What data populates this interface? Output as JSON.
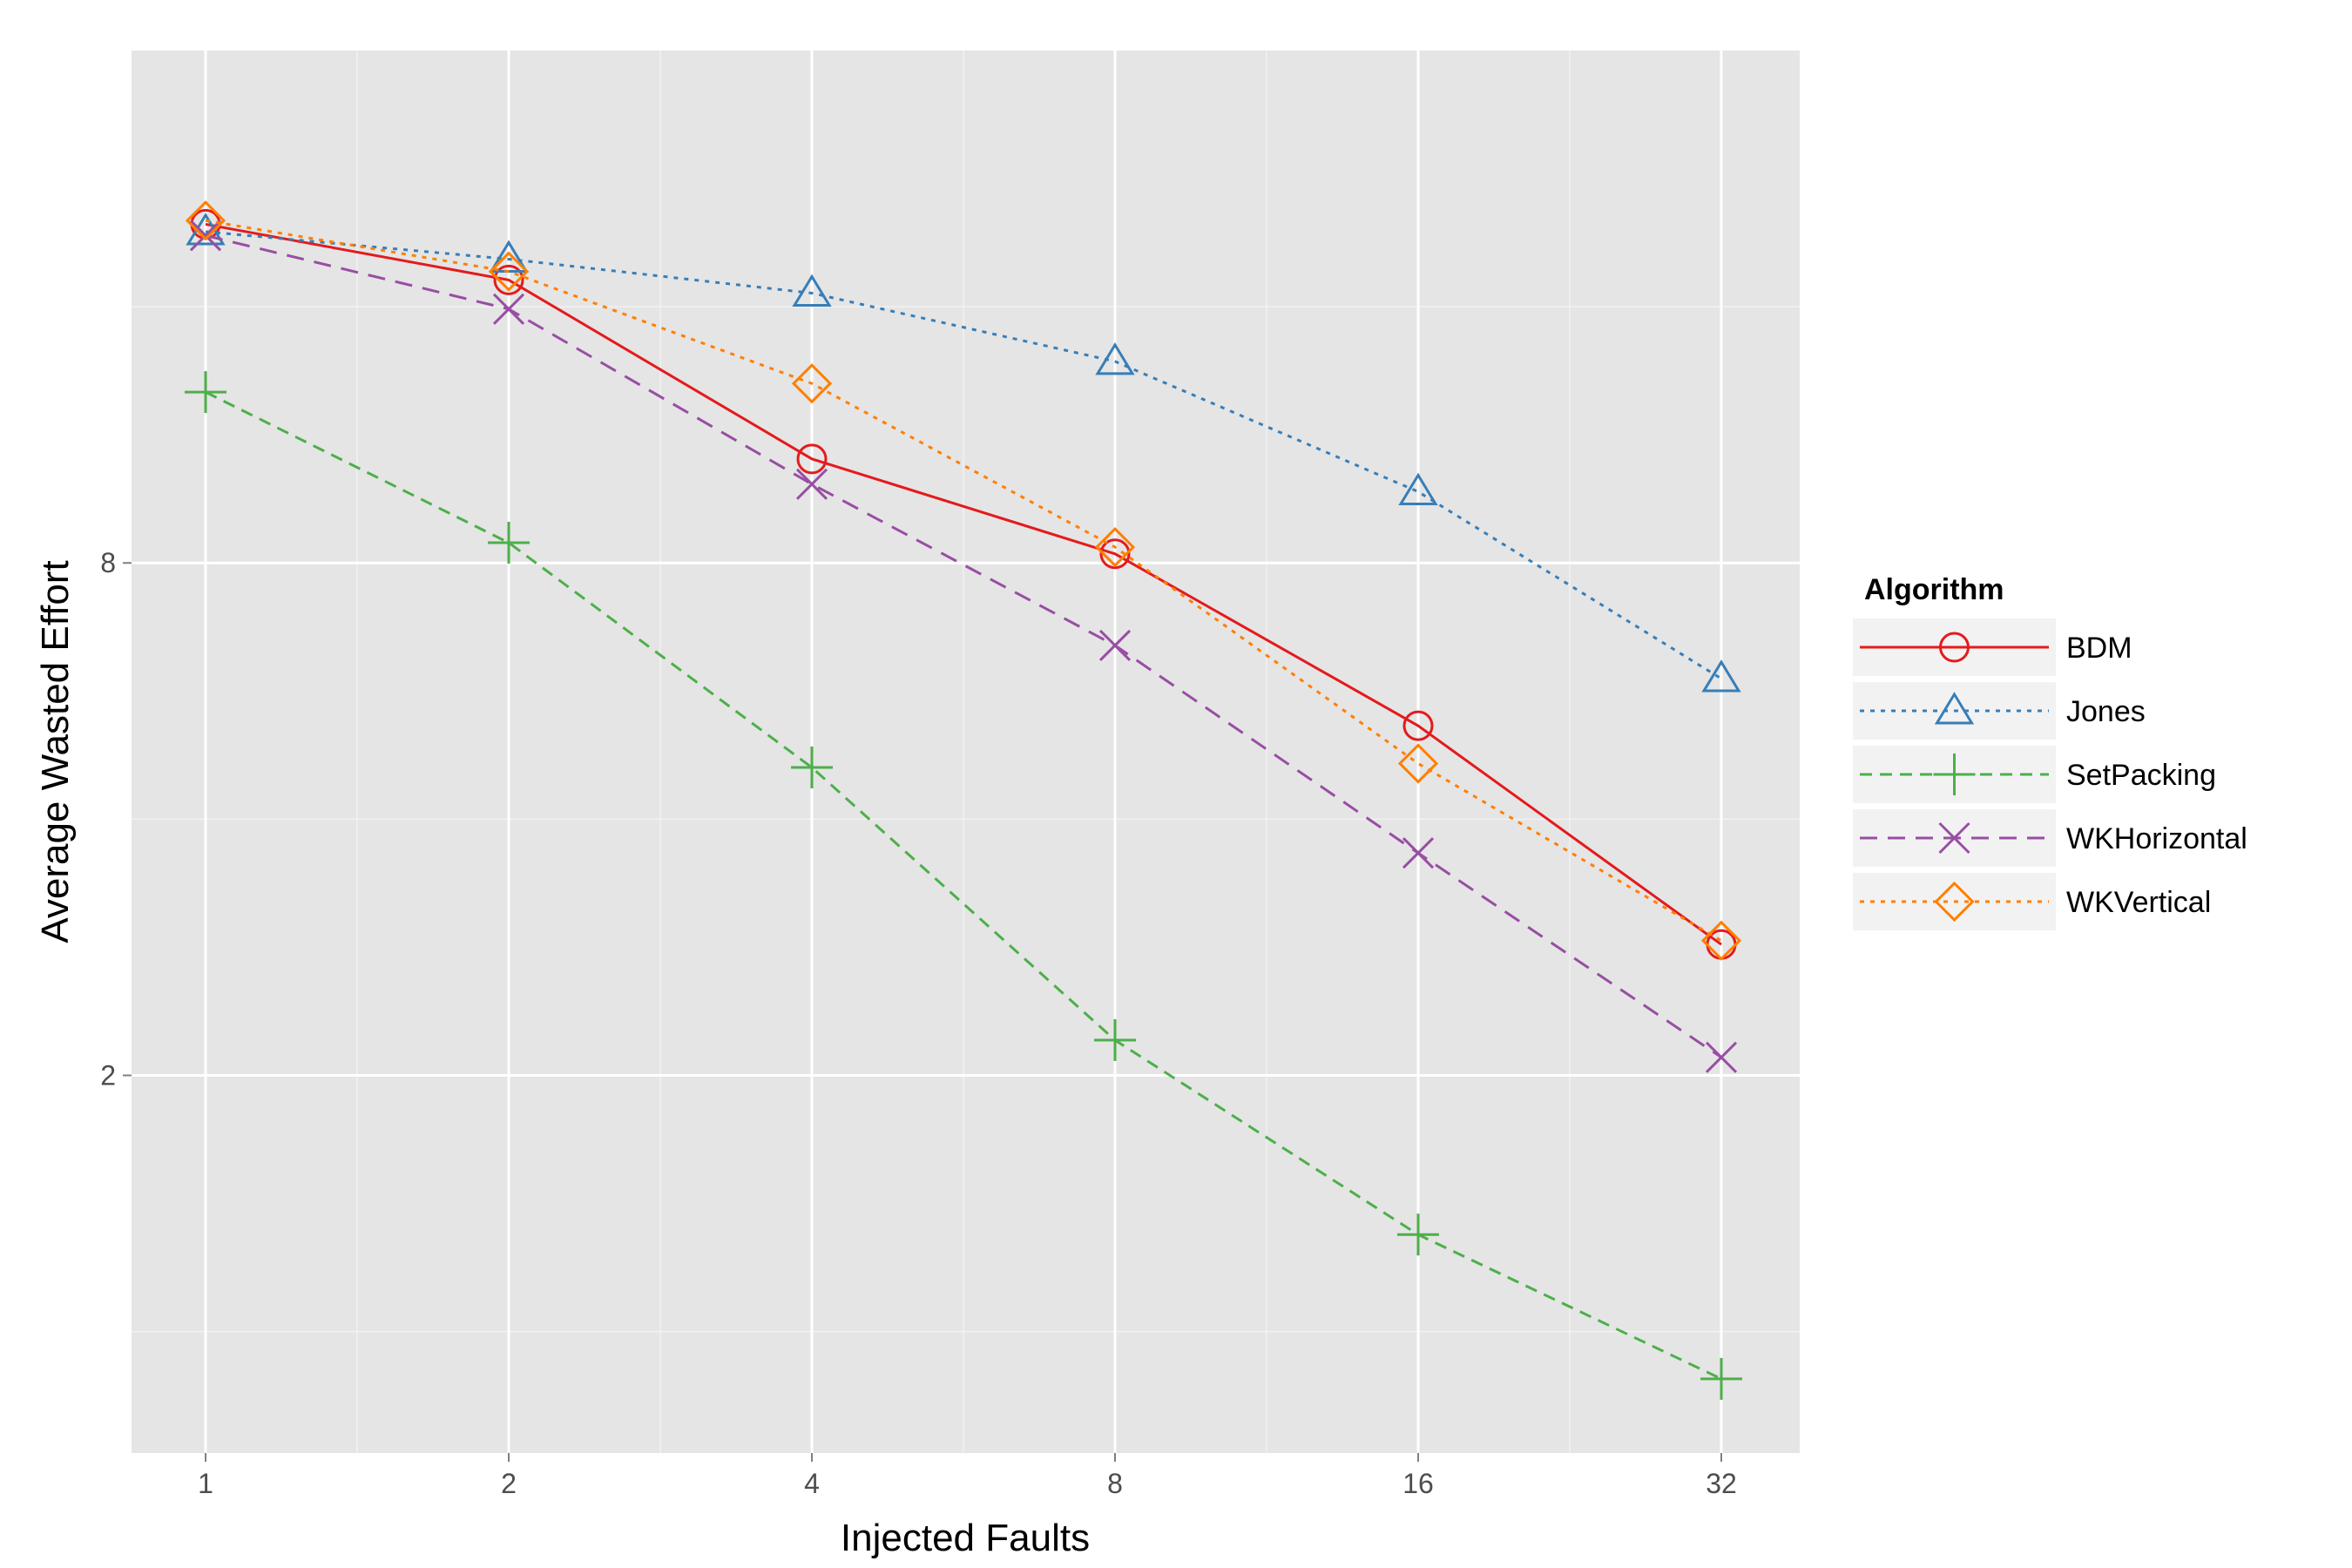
{
  "chart_data": {
    "type": "line",
    "title": "",
    "xlabel": "Injected Faults",
    "ylabel": "Average Wasted Effort",
    "x_scale": "log2",
    "y_scale": "log",
    "x": [
      1,
      2,
      4,
      8,
      16,
      32
    ],
    "x_tick_labels": [
      "1",
      "2",
      "4",
      "8",
      "16",
      "32"
    ],
    "y_ticks": [
      2,
      8
    ],
    "y_tick_labels": [
      "2",
      "8"
    ],
    "ylim": [
      0.72,
      32
    ],
    "grid": true,
    "legend": {
      "title": "Algorithm",
      "position": "right"
    },
    "series": [
      {
        "name": "BDM",
        "color": "#e41a1c",
        "line": "solid",
        "marker": "circle",
        "values": [
          20.0,
          17.2,
          10.6,
          8.2,
          5.15,
          2.85
        ]
      },
      {
        "name": "Jones",
        "color": "#377eb8",
        "line": "dotted",
        "marker": "triangle",
        "values": [
          19.6,
          18.2,
          16.6,
          13.8,
          9.7,
          5.85
        ]
      },
      {
        "name": "SetPacking",
        "color": "#4daf4a",
        "line": "dashed",
        "marker": "plus",
        "values": [
          12.7,
          8.45,
          4.6,
          2.2,
          1.3,
          0.88
        ]
      },
      {
        "name": "WKHorizontal",
        "color": "#984ea3",
        "line": "longdash",
        "marker": "x",
        "values": [
          19.4,
          15.9,
          9.9,
          6.4,
          3.65,
          2.1
        ]
      },
      {
        "name": "WKVertical",
        "color": "#ff7f00",
        "line": "dotted",
        "marker": "diamond",
        "values": [
          20.2,
          17.6,
          13.0,
          8.35,
          4.65,
          2.88
        ]
      }
    ]
  }
}
